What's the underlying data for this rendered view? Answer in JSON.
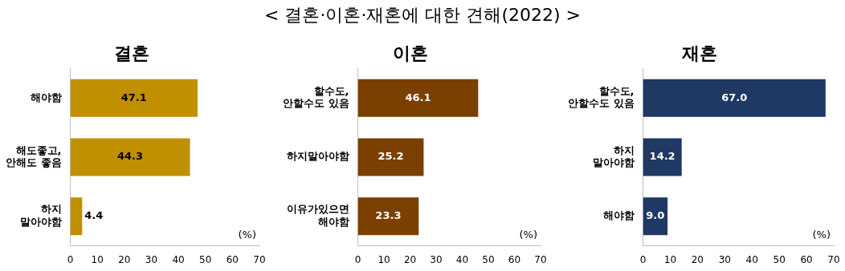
{
  "chart_data": [
    {
      "type": "other",
      "title": "< 결혼·이혼·재혼에 대한 견해(2022) >"
    },
    {
      "type": "bar",
      "orientation": "horizontal",
      "title": "결혼",
      "categories": [
        "해야함",
        "해도좋고,\n안해도 좋음",
        "하지\n말아야함"
      ],
      "values": [
        47.1,
        44.3,
        4.4
      ],
      "color": "#c09000",
      "xlim": [
        0,
        70
      ],
      "xticks": [
        0,
        10,
        20,
        30,
        40,
        50,
        60,
        70
      ],
      "data_labels": true,
      "annotations": [
        "(%)"
      ]
    },
    {
      "type": "bar",
      "orientation": "horizontal",
      "title": "이혼",
      "categories": [
        "할수도,\n안할수도 있음",
        "하지말아야함",
        "이유가있으면\n해야함"
      ],
      "values": [
        46.1,
        25.2,
        23.3
      ],
      "color": "#7b3f00",
      "xlim": [
        0,
        70
      ],
      "xticks": [
        0,
        10,
        20,
        30,
        40,
        50,
        60,
        70
      ],
      "data_labels": true,
      "annotations": [
        "(%)"
      ]
    },
    {
      "type": "bar",
      "orientation": "horizontal",
      "title": "재혼",
      "categories": [
        "할수도,\n안할수도 있음",
        "하지\n말아야함",
        "해야함"
      ],
      "values": [
        67.0,
        14.2,
        9.0
      ],
      "value_labels": [
        "67.0",
        "14.2",
        "9.0"
      ],
      "color": "#1f3864",
      "xlim": [
        0,
        70
      ],
      "xticks": [
        0,
        10,
        20,
        30,
        40,
        50,
        60,
        70
      ],
      "annotations": [
        "(%)"
      ]
    }
  ]
}
